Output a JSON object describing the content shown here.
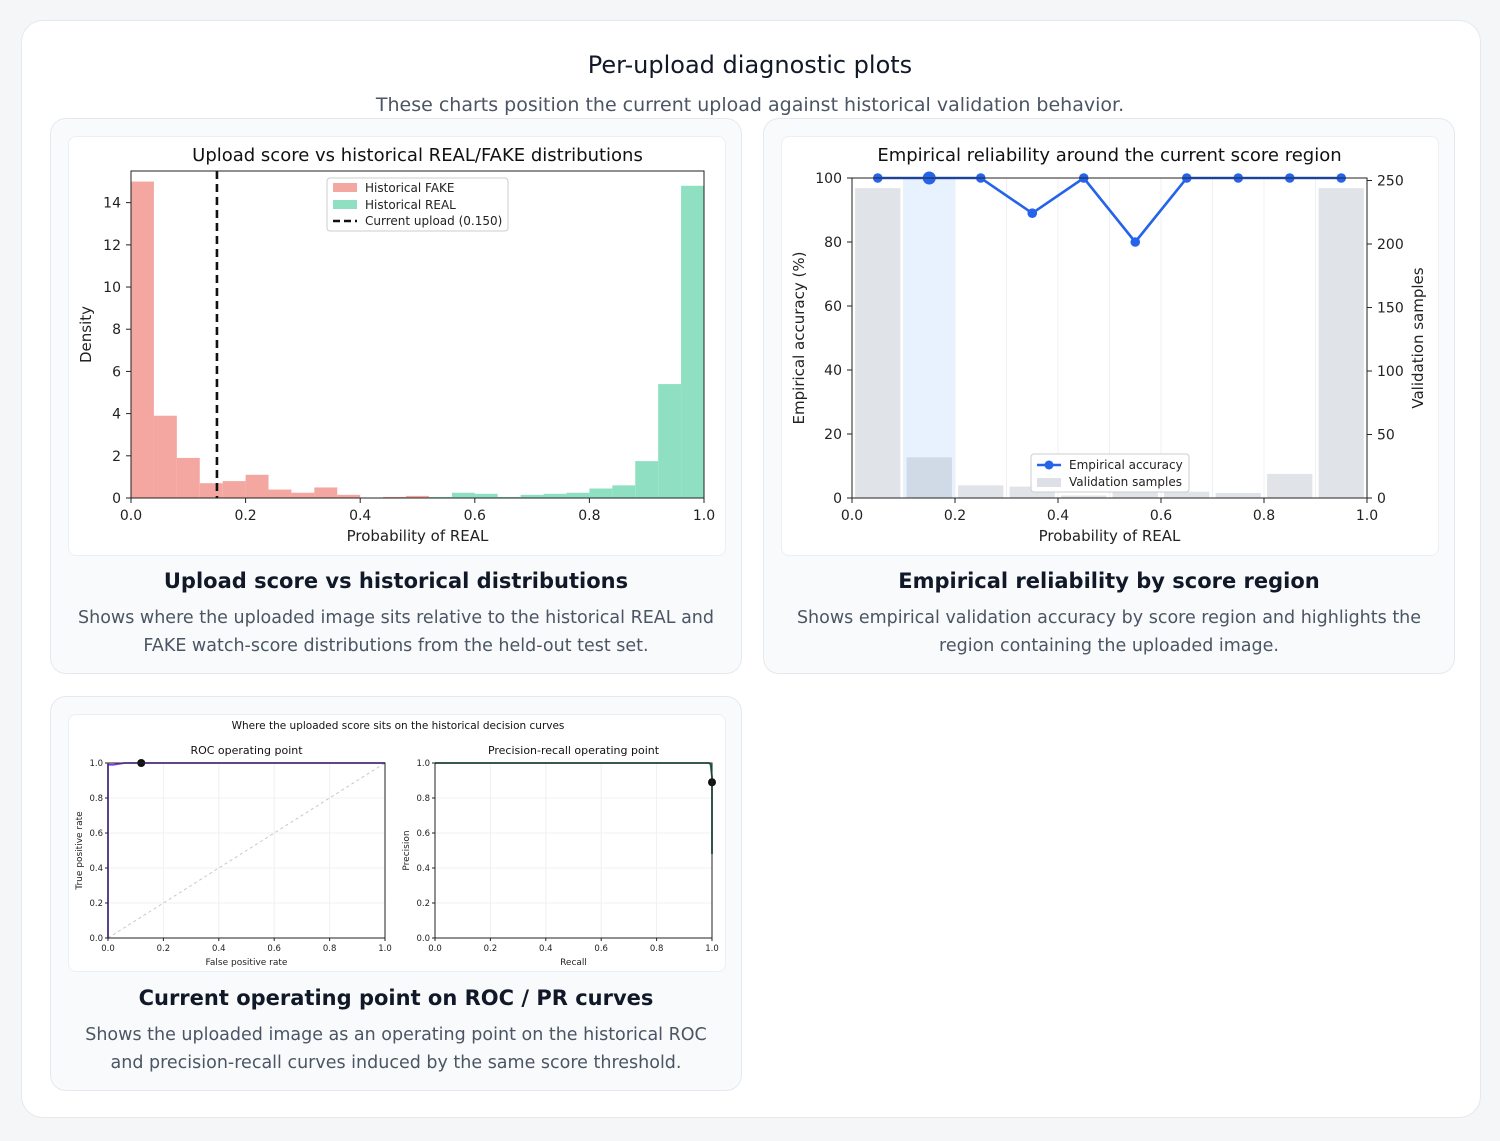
{
  "page": {
    "title": "Per-upload diagnostic plots",
    "subtitle": "These charts position the current upload against historical validation behavior."
  },
  "cards": [
    {
      "title": "Upload score vs historical distributions",
      "description": "Shows where the uploaded image sits relative to the historical REAL and FAKE watch-score distributions from the held-out test set."
    },
    {
      "title": "Empirical reliability by score region",
      "description": "Shows empirical validation accuracy by score region and highlights the region containing the uploaded image."
    },
    {
      "title": "Current operating point on ROC / PR curves",
      "description": "Shows the uploaded image as an operating point on the historical ROC and precision-recall curves induced by the same score threshold."
    }
  ],
  "chart_data": [
    {
      "type": "bar",
      "title": "Upload score vs historical REAL/FAKE distributions",
      "xlabel": "Probability of REAL",
      "ylabel": "Density",
      "xlim": [
        0,
        1
      ],
      "ylim": [
        0,
        15.5
      ],
      "x_ticks": [
        "0.0",
        "0.2",
        "0.4",
        "0.6",
        "0.8",
        "1.0"
      ],
      "y_ticks": [
        "0",
        "2",
        "4",
        "6",
        "8",
        "10",
        "12",
        "14"
      ],
      "bin_width": 0.04,
      "legend_position": "top-center",
      "series": [
        {
          "name": "Historical FAKE",
          "color": "#f4a6a0",
          "bin_starts": [
            0.0,
            0.04,
            0.08,
            0.12,
            0.16,
            0.2,
            0.24,
            0.28,
            0.32,
            0.36,
            0.44,
            0.48
          ],
          "values": [
            15.0,
            3.9,
            1.9,
            0.7,
            0.8,
            1.1,
            0.4,
            0.25,
            0.5,
            0.15,
            0.05,
            0.1
          ]
        },
        {
          "name": "Historical REAL",
          "color": "#8fe0c2",
          "bin_starts": [
            0.52,
            0.56,
            0.6,
            0.64,
            0.68,
            0.72,
            0.76,
            0.8,
            0.84,
            0.88,
            0.92,
            0.96
          ],
          "values": [
            0.05,
            0.25,
            0.2,
            0.05,
            0.15,
            0.2,
            0.25,
            0.45,
            0.6,
            1.75,
            5.4,
            14.8
          ]
        }
      ],
      "marker": {
        "name": "Current upload (0.150)",
        "x": 0.15
      }
    },
    {
      "type": "line",
      "title": "Empirical reliability around the current score region",
      "xlabel": "Probability of REAL",
      "ylabel": "Empirical accuracy (%)",
      "ylabel_right": "Validation samples",
      "xlim": [
        0,
        1
      ],
      "ylim": [
        0,
        100
      ],
      "ylim_right": [
        0,
        252
      ],
      "x_ticks": [
        "0.0",
        "0.2",
        "0.4",
        "0.6",
        "0.8",
        "1.0"
      ],
      "y_ticks": [
        "0",
        "20",
        "40",
        "60",
        "80",
        "100"
      ],
      "y_ticks_right": [
        "0",
        "50",
        "100",
        "150",
        "200",
        "250"
      ],
      "legend_position": "lower-center",
      "highlight_bin_center": 0.15,
      "series": [
        {
          "name": "Empirical accuracy",
          "color": "#2563eb",
          "x": [
            0.05,
            0.15,
            0.25,
            0.35,
            0.45,
            0.55,
            0.65,
            0.75,
            0.85,
            0.95
          ],
          "values": [
            100,
            100,
            100,
            89,
            100,
            80,
            100,
            100,
            100,
            100
          ]
        },
        {
          "name": "Validation samples",
          "color": "#dde1e7",
          "x": [
            0.05,
            0.15,
            0.25,
            0.35,
            0.45,
            0.55,
            0.65,
            0.75,
            0.85,
            0.95
          ],
          "values": [
            244,
            32,
            10,
            9,
            2,
            5,
            5,
            4,
            19,
            244
          ]
        }
      ]
    },
    {
      "type": "line",
      "title": "Where the uploaded score sits on the historical decision curves",
      "panels": [
        {
          "title": "ROC operating point",
          "xlabel": "False positive rate",
          "ylabel": "True positive rate",
          "xlim": [
            0,
            1
          ],
          "ylim": [
            0,
            1
          ],
          "ticks": [
            "0.0",
            "0.2",
            "0.4",
            "0.6",
            "0.8",
            "1.0"
          ],
          "curve_color": "#7c3aed",
          "curve": {
            "x": [
              0,
              0,
              0.02,
              0.06,
              1
            ],
            "y": [
              0,
              0.99,
              0.99,
              1,
              1
            ]
          },
          "diagonal": true,
          "point": {
            "x": 0.12,
            "y": 1.0
          }
        },
        {
          "title": "Precision-recall operating point",
          "xlabel": "Recall",
          "ylabel": "Precision",
          "xlim": [
            0,
            1
          ],
          "ylim": [
            0,
            1
          ],
          "ticks": [
            "0.0",
            "0.2",
            "0.4",
            "0.6",
            "0.8",
            "1.0"
          ],
          "curve_color": "#166a4a",
          "curve": {
            "x": [
              0,
              0.95,
              0.99,
              0.995,
              1,
              1
            ],
            "y": [
              1,
              1,
              1,
              0.99,
              0.92,
              0.48
            ]
          },
          "diagonal": false,
          "point": {
            "x": 1.0,
            "y": 0.89
          }
        }
      ]
    }
  ]
}
